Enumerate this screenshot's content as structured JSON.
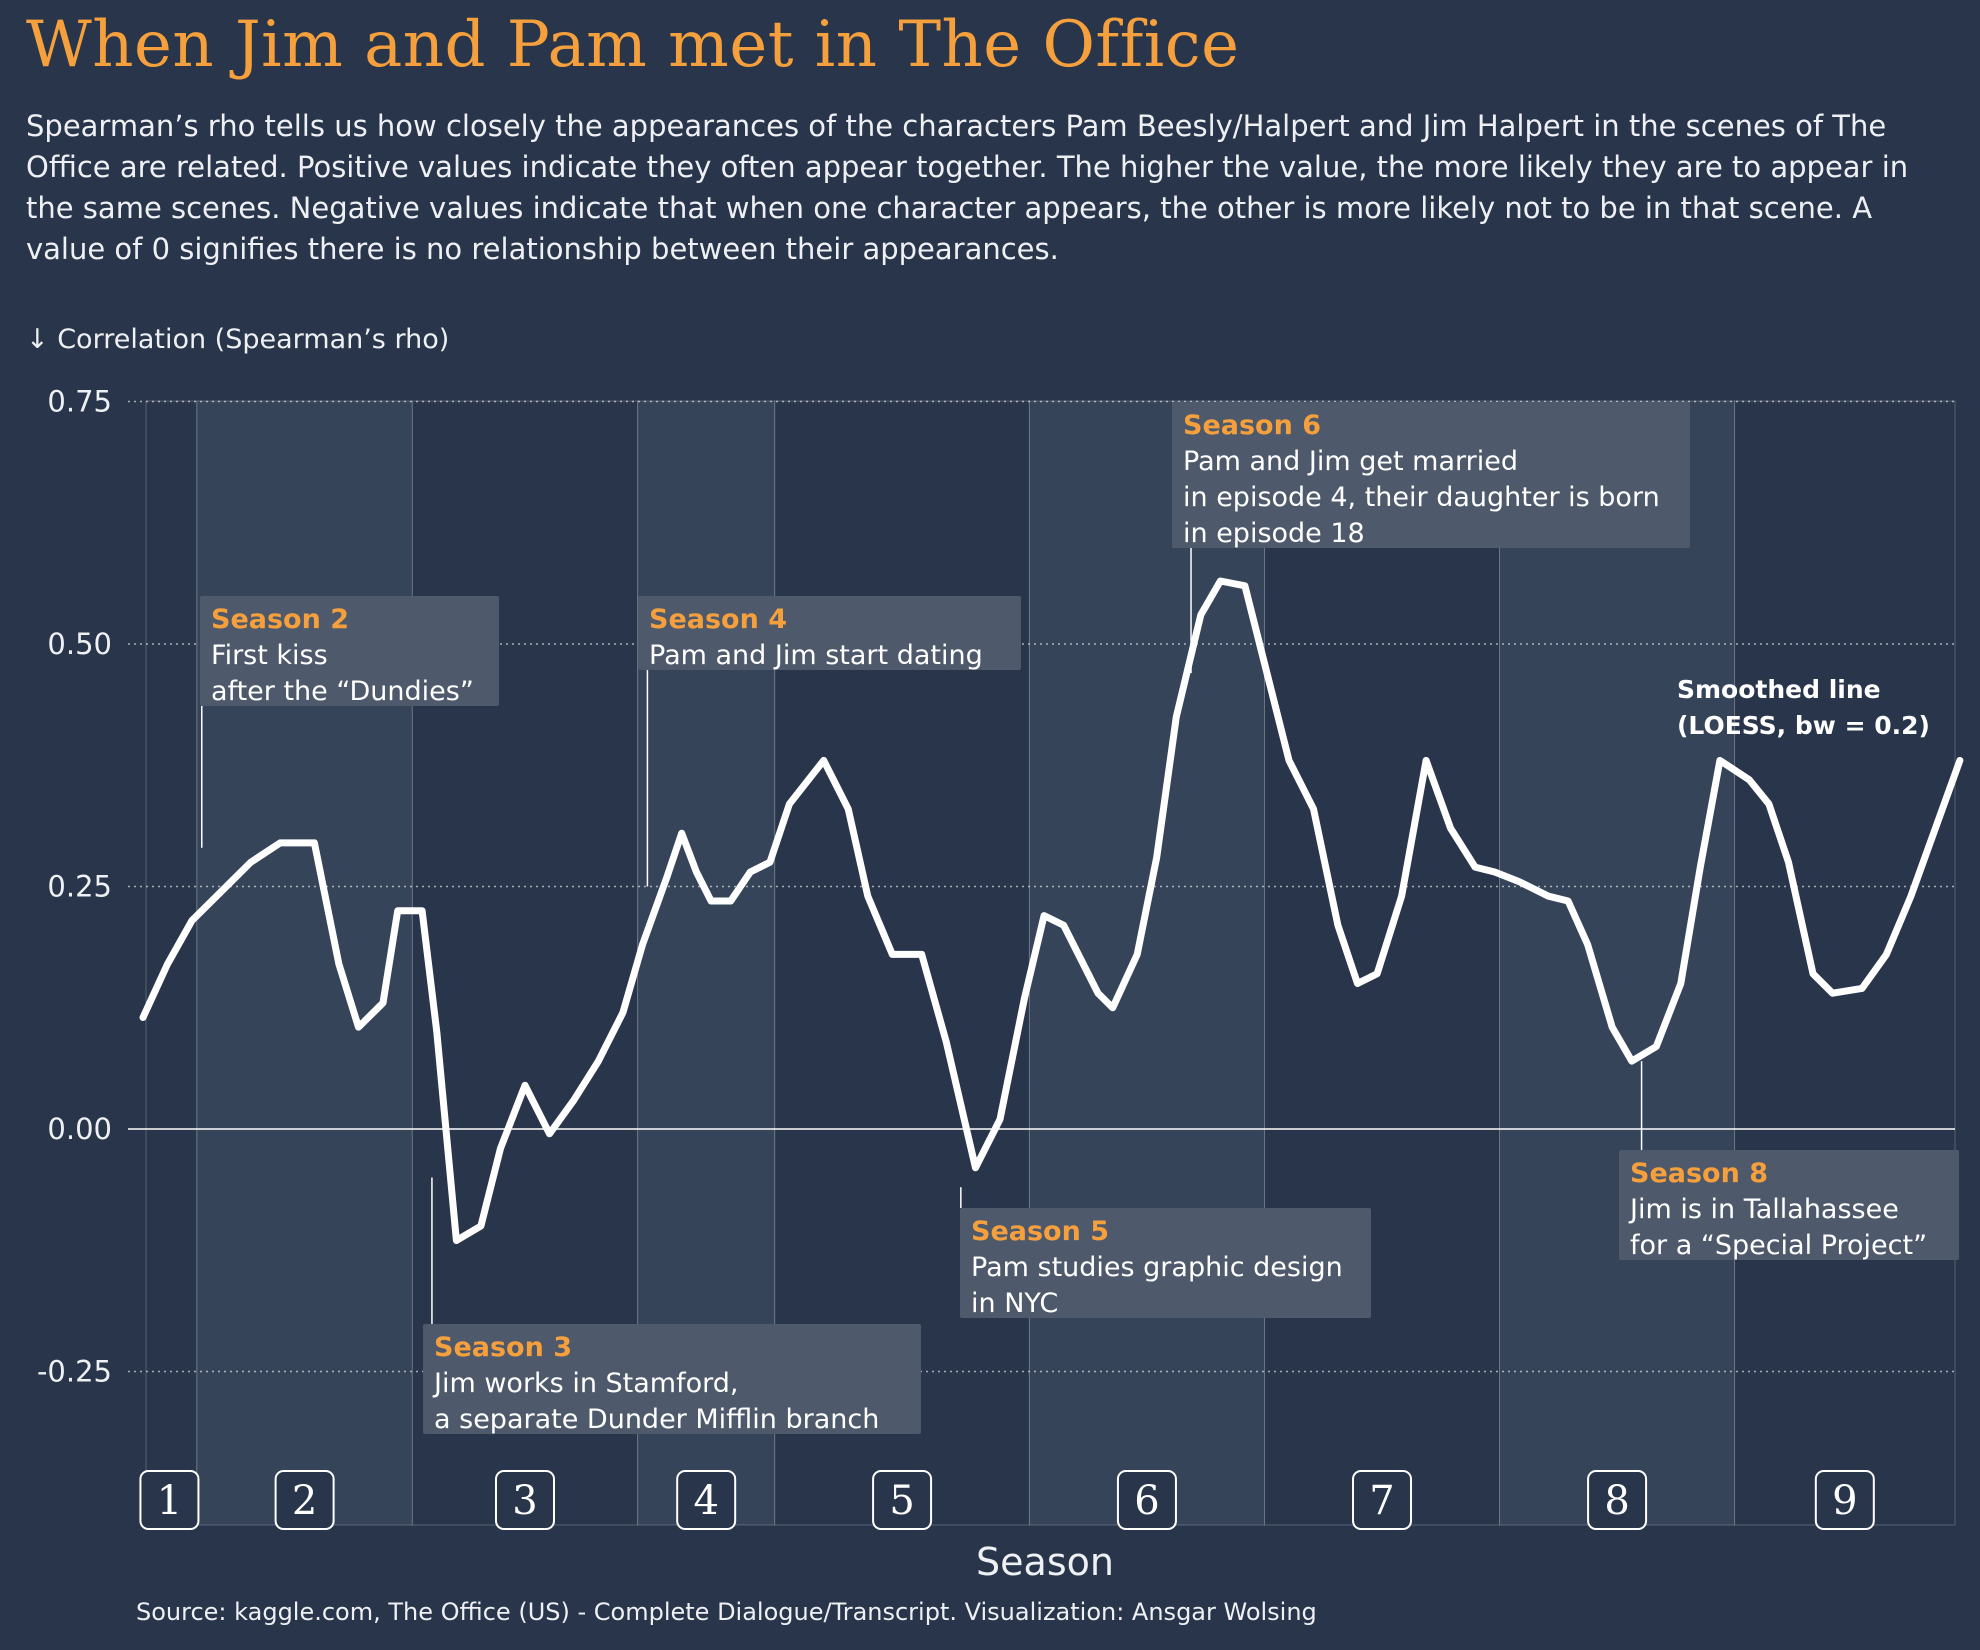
{
  "title": "When Jim and Pam met in The Office",
  "subtitle": "Spearman’s rho tells us how closely the appearances of the characters Pam Beesly/Halpert and Jim Halpert in the scenes of The Office are related. Positive values indicate they often appear together. The higher the value, the more likely they are to appear in the same scenes. Negative values indicate that when one character appears, the other is more likely not to be in that scene. A value of 0 signifies there is no relationship between their appearances.",
  "source": "Source: kaggle.com, The Office (US) - Complete Dialogue/Transcript. Visualization: Ansgar Wolsing",
  "colors": {
    "background": "#28354a",
    "title": "#f5a03d",
    "line": "#ffffff",
    "band_even": "#36445a",
    "annotation_box": "#4e596b",
    "season_label": "#f5a03d"
  },
  "chart_data": {
    "type": "line",
    "ylabel": "↓ Correlation (Spearman’s rho)",
    "xlabel": "Season",
    "ylim": [
      -0.3,
      0.75
    ],
    "yticks": [
      "0.75",
      "0.50",
      "0.25",
      "0.00",
      "-0.25"
    ],
    "ytick_values": [
      0.75,
      0.5,
      0.25,
      0.0,
      -0.25
    ],
    "grid": true,
    "episodes_total": 186,
    "seasons": [
      {
        "label": "1",
        "start": 1,
        "end": 6
      },
      {
        "label": "2",
        "start": 7,
        "end": 28
      },
      {
        "label": "3",
        "start": 29,
        "end": 51
      },
      {
        "label": "4",
        "start": 52,
        "end": 65
      },
      {
        "label": "5",
        "start": 66,
        "end": 91
      },
      {
        "label": "6",
        "start": 92,
        "end": 115
      },
      {
        "label": "7",
        "start": 116,
        "end": 139
      },
      {
        "label": "8",
        "start": 140,
        "end": 163
      },
      {
        "label": "9",
        "start": 164,
        "end": 186
      }
    ],
    "series": [
      {
        "name": "Smoothed line\n(LOESS, bw = 0.2)",
        "x": [
          1,
          3.5,
          6,
          9,
          12,
          15,
          16.5,
          18.5,
          21,
          23,
          25.5,
          27,
          29.5,
          31,
          33,
          35.5,
          37.5,
          40,
          42.5,
          45,
          47.5,
          50,
          52,
          54.5,
          56,
          57.5,
          59,
          61,
          63,
          65,
          67,
          70.5,
          73,
          75,
          77.5,
          80.5,
          83,
          86,
          88.5,
          91,
          93,
          95,
          98.5,
          100,
          102.5,
          104.5,
          106.5,
          109,
          111,
          113.5,
          115.5,
          118,
          120.5,
          123,
          125,
          127,
          129.5,
          132,
          134.5,
          137,
          139,
          141.5,
          144.5,
          146.5,
          148.5,
          151,
          153,
          155.5,
          158,
          160,
          162,
          165,
          167,
          169,
          171.5,
          173.5,
          176.5,
          179,
          181.5,
          184,
          186.5
        ],
        "y": [
          0.115,
          0.17,
          0.215,
          0.245,
          0.275,
          0.295,
          0.295,
          0.295,
          0.17,
          0.105,
          0.13,
          0.225,
          0.225,
          0.1,
          -0.115,
          -0.1,
          -0.02,
          0.045,
          -0.005,
          0.03,
          0.07,
          0.12,
          0.19,
          0.26,
          0.305,
          0.265,
          0.235,
          0.235,
          0.265,
          0.275,
          0.335,
          0.38,
          0.33,
          0.24,
          0.18,
          0.18,
          0.09,
          -0.04,
          0.01,
          0.135,
          0.22,
          0.21,
          0.14,
          0.125,
          0.18,
          0.28,
          0.425,
          0.53,
          0.565,
          0.56,
          0.48,
          0.38,
          0.33,
          0.21,
          0.15,
          0.16,
          0.24,
          0.38,
          0.31,
          0.27,
          0.265,
          0.255,
          0.24,
          0.235,
          0.19,
          0.105,
          0.07,
          0.085,
          0.15,
          0.27,
          0.38,
          0.36,
          0.335,
          0.275,
          0.16,
          0.14,
          0.145,
          0.18,
          0.24,
          0.31,
          0.38
        ]
      }
    ],
    "annotations": [
      {
        "season": "Season 2",
        "text": [
          "First kiss",
          "after the “Dundies”"
        ],
        "x": 7,
        "y": 0.29,
        "placement": "above"
      },
      {
        "season": "Season 3",
        "text": [
          "Jim works in Stamford,",
          "a separate Dunder Mifflin branch"
        ],
        "x": 30.5,
        "y": -0.05,
        "placement": "below"
      },
      {
        "season": "Season 4",
        "text": [
          "Pam and Jim start dating"
        ],
        "x": 52.5,
        "y": 0.25,
        "placement": "above"
      },
      {
        "season": "Season 5",
        "text": [
          "Pam studies graphic design",
          "in NYC"
        ],
        "x": 84.5,
        "y": -0.06,
        "placement": "below"
      },
      {
        "season": "Season 6",
        "text": [
          "Pam and Jim get married",
          "in episode 4, their daughter is born",
          "in episode 18"
        ],
        "x": 108,
        "y": 0.47,
        "placement": "above"
      },
      {
        "season": "Season 8",
        "text": [
          "Jim is in Tallahassee",
          "for a “Special Project”"
        ],
        "x": 154,
        "y": 0.07,
        "placement": "below"
      }
    ],
    "legend_note": "Smoothed line\n(LOESS, bw = 0.2)",
    "legend_position": "top-right"
  }
}
